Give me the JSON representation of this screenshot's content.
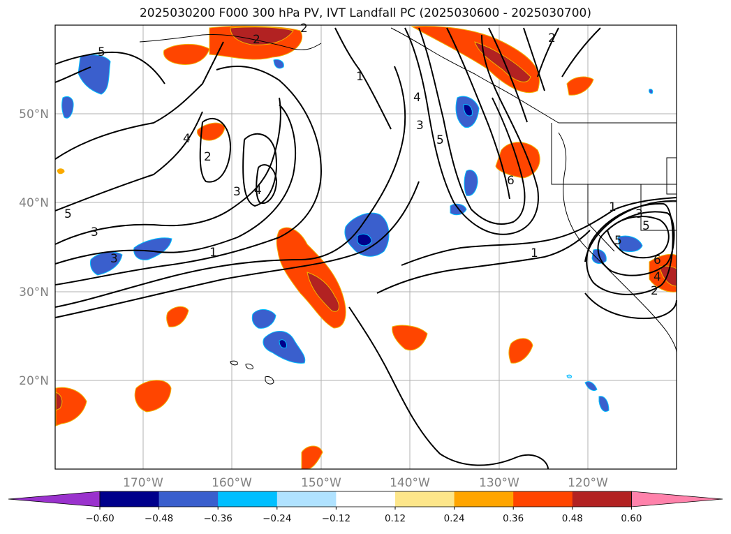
{
  "title": "2025030200 F000 300 hPa PV, IVT Landfall PC (2025030600 - 2025030700)",
  "map": {
    "lon_ticks": [
      "170°W",
      "160°W",
      "150°W",
      "140°W",
      "130°W",
      "120°W"
    ],
    "lat_ticks": [
      "50°N",
      "40°N",
      "30°N",
      "20°N"
    ],
    "grid": true,
    "contour_color": "#000000",
    "contour_labels": [
      "5",
      "1",
      "4",
      "2",
      "3",
      "4",
      "2",
      "3",
      "5",
      "1",
      "3",
      "1",
      "2",
      "4",
      "3",
      "5",
      "6",
      "1",
      "3",
      "5",
      "6",
      "4",
      "2",
      "2",
      "5"
    ]
  },
  "colorbar": {
    "levels": [
      "−0.60",
      "−0.48",
      "−0.36",
      "−0.24",
      "−0.12",
      "0.12",
      "0.24",
      "0.36",
      "0.48",
      "0.60"
    ],
    "colors": [
      "#9a32cd",
      "#00008b",
      "#3a5fcd",
      "#00bfff",
      "#b0e2ff",
      "#ffffff",
      "#fde68a",
      "#ffa500",
      "#ff4500",
      "#b22222",
      "#ff82ab"
    ]
  }
}
